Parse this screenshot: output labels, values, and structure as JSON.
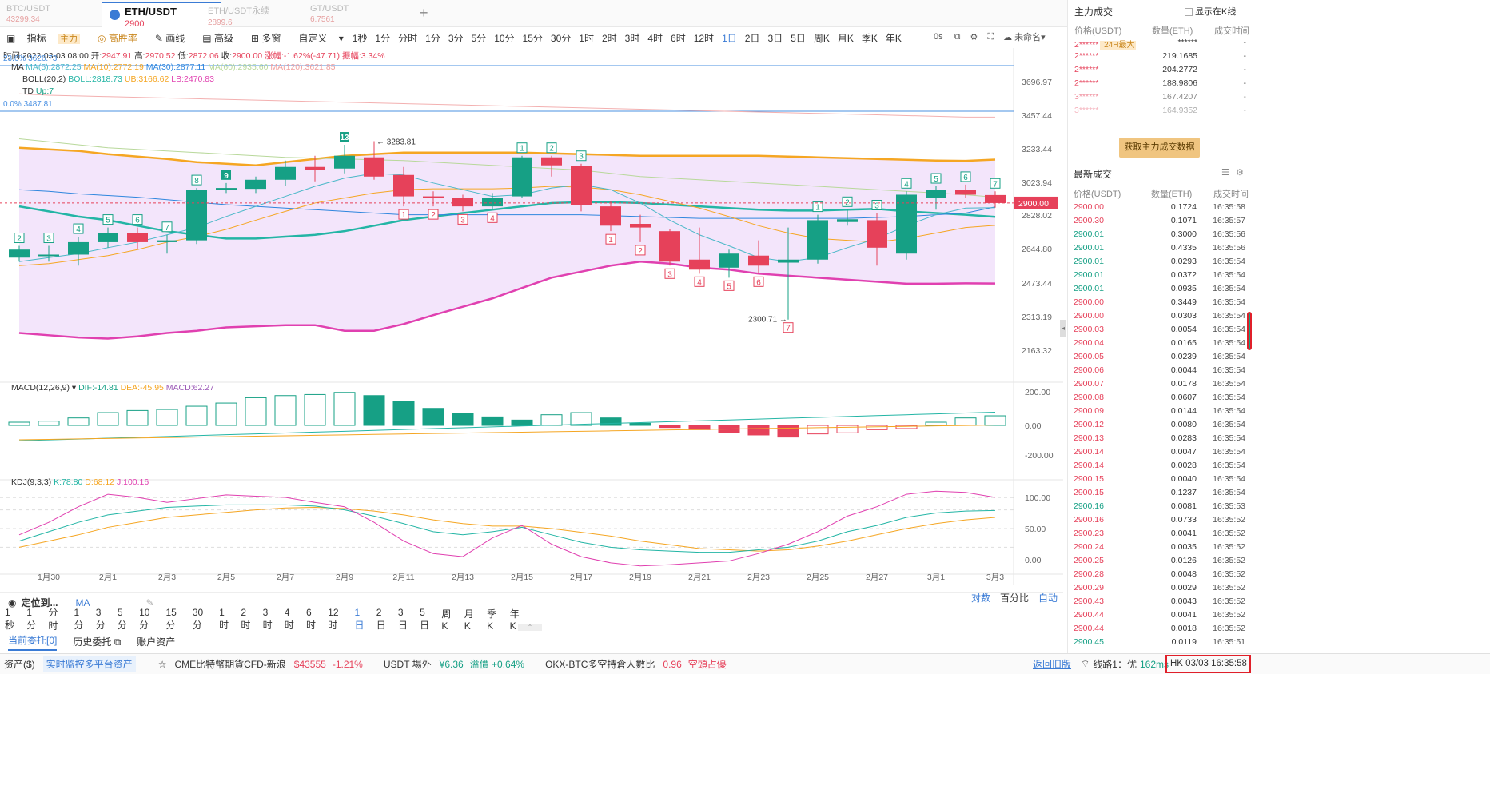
{
  "tabs": [
    {
      "symbol": "BTC/USDT",
      "price": "43299.34"
    },
    {
      "symbol": "ETH/USDT",
      "price": "2900"
    },
    {
      "symbol": "ETH/USDT永续",
      "price": "2899.6"
    },
    {
      "symbol": "GT/USDT",
      "price": "6.7561"
    }
  ],
  "toolbar": {
    "items": [
      "指标",
      "主力",
      "高胜率",
      "画线",
      "高级",
      "多窗",
      "自定义"
    ],
    "intervals": [
      "1秒",
      "1分",
      "分时",
      "1分",
      "3分",
      "5分",
      "10分",
      "15分",
      "30分",
      "1时",
      "2时",
      "3时",
      "4时",
      "6时",
      "12时",
      "1日",
      "2日",
      "3日",
      "5日",
      "周K",
      "月K",
      "季K",
      "年K"
    ],
    "selected": "1日",
    "right_status": "0s",
    "unnamed": "未命名"
  },
  "legend": {
    "time": "时间:2022-03-03 08:00",
    "open_label": "开:",
    "open": "2947.91",
    "high_label": "高:",
    "high": "2970.52",
    "low_label": "低:",
    "low": "2872.06",
    "close_label": "收:",
    "close": "2900.00",
    "change": "涨幅:-1.62%(-47.71)",
    "amp": "振幅:3.34%",
    "fib_top": "23.6% 3626.73",
    "ma_label": "MA",
    "ma5": "MA(5):2872.25",
    "ma10": "MA(10):2772.19",
    "ma30": "MA(30):2877.11",
    "ma60": "MA(60):2935.60",
    "ma120": "MA(120):3621.85",
    "boll_label": "BOLL(20,2)",
    "boll": "BOLL:2818.73",
    "ub": "UB:3166.62",
    "lb": "LB:2470.83",
    "td_label": "TD",
    "td": "Up:7",
    "fib_zero": "0.0% 3487.81"
  },
  "price_axis": [
    "3696.97",
    "3457.44",
    "3233.44",
    "3023.94",
    "2828.02",
    "2644.80",
    "2473.44",
    "2313.19",
    "2163.32"
  ],
  "current_price": "2900.00",
  "high_mark": "3283.81",
  "low_mark": "2300.71",
  "macd": {
    "label": "MACD(12,26,9)",
    "dif": "DIF:-14.81",
    "dea": "DEA:-45.95",
    "macd": "MACD:62.27",
    "axis": [
      "200.00",
      "0.00",
      "-200.00"
    ]
  },
  "kdj": {
    "label": "KDJ(9,3,3)",
    "k": "K:78.80",
    "d": "D:68.12",
    "j": "J:100.16",
    "axis": [
      "100.00",
      "50.00",
      "0.00"
    ]
  },
  "dates": [
    "1月30",
    "2月1",
    "2月3",
    "2月5",
    "2月7",
    "2月9",
    "2月11",
    "2月13",
    "2月15",
    "2月17",
    "2月19",
    "2月21",
    "2月23",
    "2月25",
    "2月27",
    "3月1",
    "3月3"
  ],
  "candles": [
    {
      "o": 2600,
      "c": 2640,
      "h": 2660,
      "l": 2580,
      "td": "2",
      "tdc": "g"
    },
    {
      "o": 2610,
      "c": 2615,
      "h": 2660,
      "l": 2580,
      "td": "3",
      "tdc": "g"
    },
    {
      "o": 2615,
      "c": 2680,
      "h": 2710,
      "l": 2560,
      "td": "4",
      "tdc": "g"
    },
    {
      "o": 2680,
      "c": 2730,
      "h": 2760,
      "l": 2650,
      "td": "5",
      "tdc": "g"
    },
    {
      "o": 2730,
      "c": 2680,
      "h": 2760,
      "l": 2640,
      "td": "6",
      "tdc": "g"
    },
    {
      "o": 2680,
      "c": 2690,
      "h": 2720,
      "l": 2620,
      "td": "7",
      "tdc": "g"
    },
    {
      "o": 2690,
      "c": 2980,
      "h": 2990,
      "l": 2670,
      "td": "8",
      "tdc": "g"
    },
    {
      "o": 2980,
      "c": 2990,
      "h": 3020,
      "l": 2960,
      "td": "9",
      "tdc": "f"
    },
    {
      "o": 2985,
      "c": 3040,
      "h": 3060,
      "l": 2960,
      "td": "",
      "tdc": "g"
    },
    {
      "o": 3040,
      "c": 3120,
      "h": 3160,
      "l": 3000,
      "td": "",
      "tdc": "g"
    },
    {
      "o": 3120,
      "c": 3100,
      "h": 3190,
      "l": 3030,
      "td": "",
      "tdc": "g"
    },
    {
      "o": 3110,
      "c": 3190,
      "h": 3260,
      "l": 3080,
      "td": "13",
      "tdc": "f"
    },
    {
      "o": 3180,
      "c": 3060,
      "h": 3284,
      "l": 3040,
      "td": "",
      "tdc": "g"
    },
    {
      "o": 3070,
      "c": 2940,
      "h": 3120,
      "l": 2880,
      "td": "1",
      "tdc": "r"
    },
    {
      "o": 2940,
      "c": 2930,
      "h": 2970,
      "l": 2880,
      "td": "2",
      "tdc": "r"
    },
    {
      "o": 2930,
      "c": 2880,
      "h": 2950,
      "l": 2850,
      "td": "3",
      "tdc": "r"
    },
    {
      "o": 2880,
      "c": 2930,
      "h": 2960,
      "l": 2860,
      "td": "4",
      "tdc": "r"
    },
    {
      "o": 2940,
      "c": 3180,
      "h": 3190,
      "l": 2930,
      "td": "1",
      "tdc": "g"
    },
    {
      "o": 3180,
      "c": 3130,
      "h": 3190,
      "l": 3060,
      "td": "2",
      "tdc": "g"
    },
    {
      "o": 3125,
      "c": 2890,
      "h": 3140,
      "l": 2850,
      "td": "3",
      "tdc": "g"
    },
    {
      "o": 2880,
      "c": 2770,
      "h": 2910,
      "l": 2740,
      "td": "1",
      "tdc": "r"
    },
    {
      "o": 2780,
      "c": 2760,
      "h": 2830,
      "l": 2680,
      "td": "2",
      "tdc": "r"
    },
    {
      "o": 2740,
      "c": 2580,
      "h": 2750,
      "l": 2560,
      "td": "3",
      "tdc": "r"
    },
    {
      "o": 2590,
      "c": 2540,
      "h": 2760,
      "l": 2520,
      "td": "4",
      "tdc": "r"
    },
    {
      "o": 2550,
      "c": 2620,
      "h": 2640,
      "l": 2500,
      "td": "5",
      "tdc": "r"
    },
    {
      "o": 2610,
      "c": 2560,
      "h": 2690,
      "l": 2520,
      "td": "6",
      "tdc": "r"
    },
    {
      "o": 2575,
      "c": 2590,
      "h": 2760,
      "l": 2300,
      "td": "7",
      "tdc": "r"
    },
    {
      "o": 2590,
      "c": 2800,
      "h": 2830,
      "l": 2570,
      "td": "1",
      "tdc": "g"
    },
    {
      "o": 2790,
      "c": 2805,
      "h": 2860,
      "l": 2770,
      "td": "2",
      "tdc": "g"
    },
    {
      "o": 2800,
      "c": 2650,
      "h": 2840,
      "l": 2560,
      "td": "3",
      "tdc": "g"
    },
    {
      "o": 2620,
      "c": 2950,
      "h": 2970,
      "l": 2590,
      "td": "4",
      "tdc": "g"
    },
    {
      "o": 2930,
      "c": 2980,
      "h": 3000,
      "l": 2860,
      "td": "5",
      "tdc": "g"
    },
    {
      "o": 2980,
      "c": 2950,
      "h": 3010,
      "l": 2930,
      "td": "6",
      "tdc": "g"
    },
    {
      "o": 2948,
      "c": 2900,
      "h": 2970,
      "l": 2872,
      "td": "7",
      "tdc": "g"
    }
  ],
  "right_panel": {
    "title": "主力成交",
    "show_k": "显示在K线",
    "cols": [
      "价格(USDT)",
      "数量(ETH)",
      "成交时间"
    ],
    "main_rows": [
      {
        "a": "2******",
        "tag": "24H最大",
        "b": "******",
        "c": "-"
      },
      {
        "a": "2******",
        "tag": "",
        "b": "219.1685",
        "c": "-"
      },
      {
        "a": "2******",
        "tag": "",
        "b": "204.2772",
        "c": "-"
      },
      {
        "a": "2******",
        "tag": "",
        "b": "188.9806",
        "c": "-"
      },
      {
        "a": "3******",
        "tag": "",
        "b": "167.4207",
        "c": "-"
      },
      {
        "a": "3******",
        "tag": "",
        "b": "164.9352",
        "c": "-"
      }
    ],
    "fetch_btn": "获取主力成交数据",
    "latest_title": "最新成交",
    "trades": [
      {
        "p": "2900.00",
        "q": "0.1724",
        "t": "16:35:58",
        "s": "r"
      },
      {
        "p": "2900.30",
        "q": "0.1071",
        "t": "16:35:57",
        "s": "r"
      },
      {
        "p": "2900.01",
        "q": "0.3000",
        "t": "16:35:56",
        "s": "g"
      },
      {
        "p": "2900.01",
        "q": "0.4335",
        "t": "16:35:56",
        "s": "g"
      },
      {
        "p": "2900.01",
        "q": "0.0293",
        "t": "16:35:54",
        "s": "g"
      },
      {
        "p": "2900.01",
        "q": "0.0372",
        "t": "16:35:54",
        "s": "g"
      },
      {
        "p": "2900.01",
        "q": "0.0935",
        "t": "16:35:54",
        "s": "g"
      },
      {
        "p": "2900.00",
        "q": "0.3449",
        "t": "16:35:54",
        "s": "r"
      },
      {
        "p": "2900.00",
        "q": "0.0303",
        "t": "16:35:54",
        "s": "r"
      },
      {
        "p": "2900.03",
        "q": "0.0054",
        "t": "16:35:54",
        "s": "r"
      },
      {
        "p": "2900.04",
        "q": "0.0165",
        "t": "16:35:54",
        "s": "r"
      },
      {
        "p": "2900.05",
        "q": "0.0239",
        "t": "16:35:54",
        "s": "r"
      },
      {
        "p": "2900.06",
        "q": "0.0044",
        "t": "16:35:54",
        "s": "r"
      },
      {
        "p": "2900.07",
        "q": "0.0178",
        "t": "16:35:54",
        "s": "r"
      },
      {
        "p": "2900.08",
        "q": "0.0607",
        "t": "16:35:54",
        "s": "r"
      },
      {
        "p": "2900.09",
        "q": "0.0144",
        "t": "16:35:54",
        "s": "r"
      },
      {
        "p": "2900.12",
        "q": "0.0080",
        "t": "16:35:54",
        "s": "r"
      },
      {
        "p": "2900.13",
        "q": "0.0283",
        "t": "16:35:54",
        "s": "r"
      },
      {
        "p": "2900.14",
        "q": "0.0047",
        "t": "16:35:54",
        "s": "r"
      },
      {
        "p": "2900.14",
        "q": "0.0028",
        "t": "16:35:54",
        "s": "r"
      },
      {
        "p": "2900.15",
        "q": "0.0040",
        "t": "16:35:54",
        "s": "r"
      },
      {
        "p": "2900.15",
        "q": "0.1237",
        "t": "16:35:54",
        "s": "r"
      },
      {
        "p": "2900.16",
        "q": "0.0081",
        "t": "16:35:53",
        "s": "g"
      },
      {
        "p": "2900.16",
        "q": "0.0733",
        "t": "16:35:52",
        "s": "r"
      },
      {
        "p": "2900.23",
        "q": "0.0041",
        "t": "16:35:52",
        "s": "r"
      },
      {
        "p": "2900.24",
        "q": "0.0035",
        "t": "16:35:52",
        "s": "r"
      },
      {
        "p": "2900.25",
        "q": "0.0126",
        "t": "16:35:52",
        "s": "r"
      },
      {
        "p": "2900.28",
        "q": "0.0048",
        "t": "16:35:52",
        "s": "r"
      },
      {
        "p": "2900.29",
        "q": "0.0029",
        "t": "16:35:52",
        "s": "r"
      },
      {
        "p": "2900.43",
        "q": "0.0043",
        "t": "16:35:52",
        "s": "r"
      },
      {
        "p": "2900.44",
        "q": "0.0041",
        "t": "16:35:52",
        "s": "r"
      },
      {
        "p": "2900.44",
        "q": "0.0018",
        "t": "16:35:52",
        "s": "r"
      },
      {
        "p": "2900.45",
        "q": "0.0119",
        "t": "16:35:51",
        "s": "g"
      }
    ]
  },
  "bottom": {
    "locate": "定位到...",
    "ma": "MA",
    "log": "对数",
    "pct": "百分比",
    "auto": "自动",
    "intervals": [
      "1秒",
      "1分",
      "分时",
      "1分",
      "3分",
      "5分",
      "10分",
      "15分",
      "30分",
      "1时",
      "2时",
      "3时",
      "4时",
      "6时",
      "12时",
      "1日",
      "2日",
      "3日",
      "5日",
      "周K",
      "月K",
      "季K",
      "年K"
    ],
    "selected": "1日",
    "order_tabs": [
      "当前委托[0]",
      "历史委托",
      "账户资产"
    ]
  },
  "status": {
    "assets": "资产($)",
    "monitor": "实时监控多平台资产",
    "cme": "CME比特幣期貨CFD-新浪",
    "cme_val": "$43555",
    "cme_pct": "-1.21%",
    "usdt": "USDT 場外",
    "usdt_val": "¥6.36",
    "usdt_prem": "溢價 +0.64%",
    "okx": "OKX-BTC多空持倉人數比",
    "okx_val": "0.96",
    "okx_state": "空頭占優",
    "back": "返回旧版",
    "line": "线路1：优",
    "latency": "162ms",
    "time": "HK  03/03 16:35:58"
  }
}
